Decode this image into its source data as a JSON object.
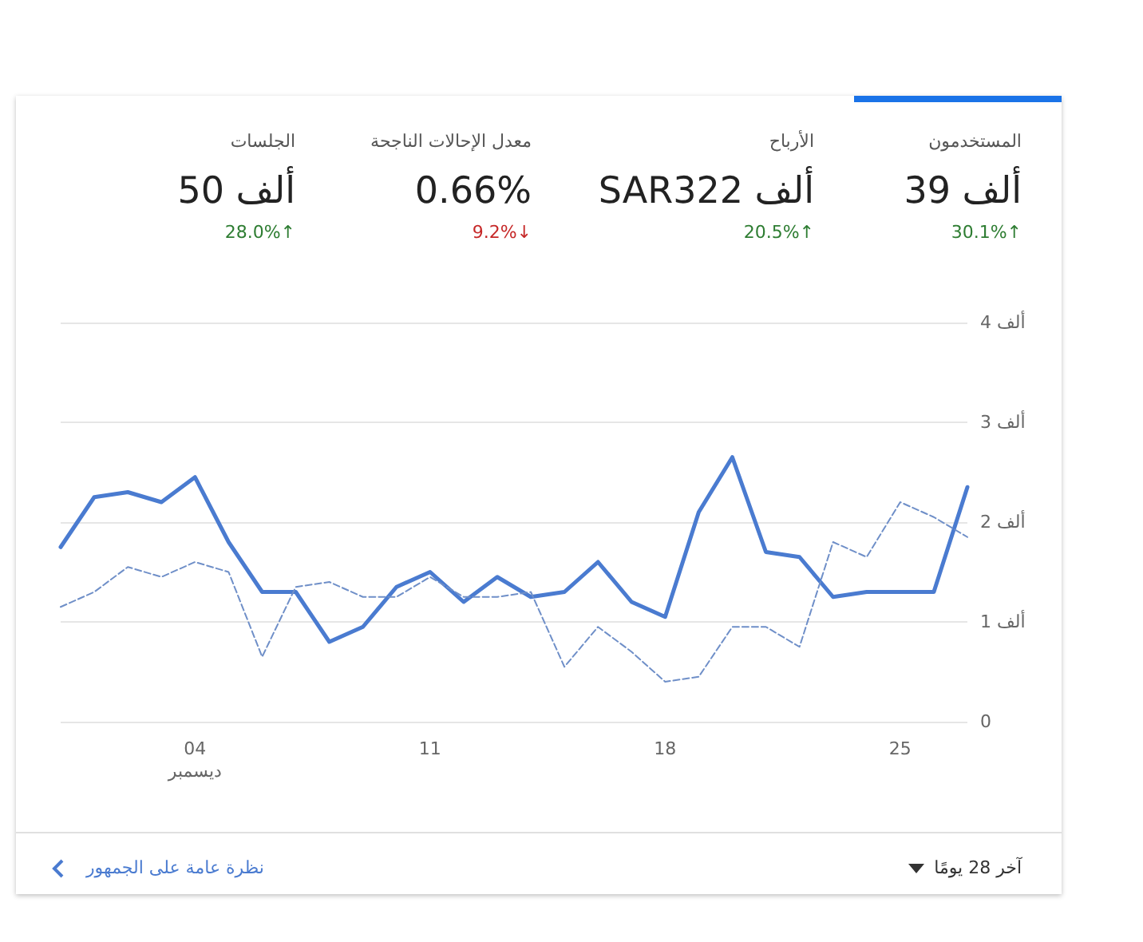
{
  "chart_data": [
    {
      "type": "other",
      "annotations": [
        "المستخدمون",
        "39 ألف",
        "30.1%↑",
        "الأرباح",
        "SAR322 ألف",
        "20.5%↑",
        "معدل الإحالات الناجحة",
        "0.66%",
        "9.2%↓",
        "الجلسات",
        "50 ألف",
        "28.0%↑"
      ],
      "colors": [
        "#2e7d32",
        "#2e7d32",
        "#c62828",
        "#2e7d32"
      ]
    },
    {
      "type": "line",
      "categories": [
        null,
        null,
        null,
        null,
        "04\nديسمبر",
        null,
        null,
        null,
        null,
        null,
        null,
        "11",
        null,
        null,
        null,
        null,
        null,
        null,
        "18",
        null,
        null,
        null,
        null,
        null,
        null,
        "25",
        null,
        null
      ],
      "series": [
        {
          "color": "#4a7bd0",
          "line_style": "solid",
          "values": [
            1.75,
            2.25,
            2.3,
            2.2,
            2.45,
            1.8,
            1.3,
            1.3,
            0.8,
            0.95,
            1.35,
            1.5,
            1.2,
            1.45,
            1.25,
            1.3,
            1.6,
            1.2,
            1.05,
            2.1,
            2.65,
            1.7,
            1.65,
            1.25,
            1.3,
            1.3,
            1.3,
            2.35
          ]
        },
        {
          "color": "#6f8fc8",
          "line_style": "dashed",
          "values": [
            1.15,
            1.3,
            1.55,
            1.45,
            1.6,
            1.5,
            0.65,
            1.35,
            1.4,
            1.25,
            1.25,
            1.45,
            1.25,
            1.25,
            1.3,
            0.55,
            0.95,
            0.7,
            0.4,
            0.45,
            0.95,
            0.95,
            0.75,
            1.8,
            1.65,
            2.2,
            2.05,
            1.85
          ]
        }
      ],
      "ylim": [
        0,
        4
      ],
      "yticks": [
        0,
        {
          "value": 1,
          "label": "1 ألف"
        },
        {
          "value": 2,
          "label": "2 ألف"
        },
        {
          "value": 3,
          "label": "3 ألف"
        },
        {
          "value": 4,
          "label": "4 ألف"
        }
      ],
      "grid": "y",
      "marker": "none",
      "annotations": [
        "آخر 28 يومًا",
        "نظرة عامة على الجمهور"
      ]
    }
  ]
}
